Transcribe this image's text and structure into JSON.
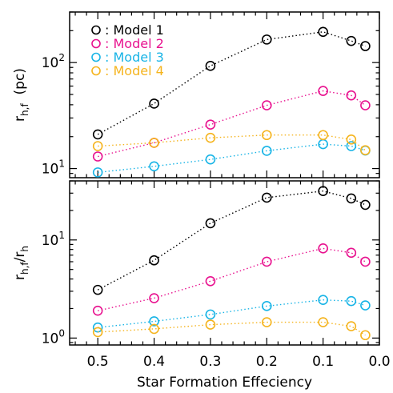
{
  "chart_data": [
    {
      "type": "line",
      "panel": "top",
      "ylabel_main": "r",
      "ylabel_sub": "h,f",
      "ylabel_unit": "(pc)",
      "yscale": "log",
      "ylim": [
        8.2,
        300
      ],
      "yticks": [
        {
          "value": 10,
          "base": "10",
          "exp": "1"
        },
        {
          "value": 100,
          "base": "10",
          "exp": "2"
        }
      ],
      "xlim": [
        0.55,
        0.0
      ],
      "legend": {
        "placement": "top-left",
        "separator": ": ",
        "entries": [
          "Model  1",
          "Model  2",
          "Model  3",
          "Model  4"
        ]
      },
      "x": [
        0.5,
        0.4,
        0.3,
        0.2,
        0.1,
        0.05,
        0.025
      ],
      "series": [
        {
          "name": "Model  1",
          "color": "#000000",
          "values": [
            21,
            41,
            93,
            165,
            195,
            160,
            143
          ]
        },
        {
          "name": "Model  2",
          "color": "#e8128f",
          "values": [
            13,
            17.5,
            26,
            39.5,
            54,
            49,
            39.5
          ]
        },
        {
          "name": "Model  3",
          "color": "#18b4e6",
          "values": [
            9.2,
            10.5,
            12.2,
            14.7,
            17,
            16.3,
            14.8
          ]
        },
        {
          "name": "Model  4",
          "color": "#f5b41e",
          "values": [
            16.3,
            17.5,
            19.5,
            20.7,
            20.7,
            18.8,
            14.9
          ]
        }
      ]
    },
    {
      "type": "line",
      "panel": "bottom",
      "ylabel_main": "r",
      "ylabel_sub": "h,f",
      "ylabel_slash": "/r",
      "ylabel_sub2": "h",
      "yscale": "log",
      "ylim": [
        0.85,
        40
      ],
      "yticks": [
        {
          "value": 1,
          "base": "10",
          "exp": "0"
        },
        {
          "value": 10,
          "base": "10",
          "exp": "1"
        }
      ],
      "xlim": [
        0.55,
        0.0
      ],
      "xlabel": "Star Formation Effeciency",
      "xticks": [
        {
          "value": 0.5,
          "label": "0.5"
        },
        {
          "value": 0.4,
          "label": "0.4"
        },
        {
          "value": 0.3,
          "label": "0.3"
        },
        {
          "value": 0.2,
          "label": "0.2"
        },
        {
          "value": 0.1,
          "label": "0.1"
        },
        {
          "value": 0.0,
          "label": "0.0"
        }
      ],
      "x": [
        0.5,
        0.4,
        0.3,
        0.2,
        0.1,
        0.05,
        0.025
      ],
      "series": [
        {
          "name": "Model  1",
          "color": "#000000",
          "values": [
            3.1,
            6.2,
            14.8,
            27,
            31.5,
            26.5,
            22.8
          ]
        },
        {
          "name": "Model  2",
          "color": "#e8128f",
          "values": [
            1.9,
            2.55,
            3.8,
            6,
            8.2,
            7.4,
            6
          ]
        },
        {
          "name": "Model  3",
          "color": "#18b4e6",
          "values": [
            1.28,
            1.48,
            1.74,
            2.12,
            2.45,
            2.38,
            2.15
          ]
        },
        {
          "name": "Model  4",
          "color": "#f5b41e",
          "values": [
            1.15,
            1.24,
            1.37,
            1.45,
            1.45,
            1.32,
            1.07
          ]
        }
      ]
    }
  ]
}
